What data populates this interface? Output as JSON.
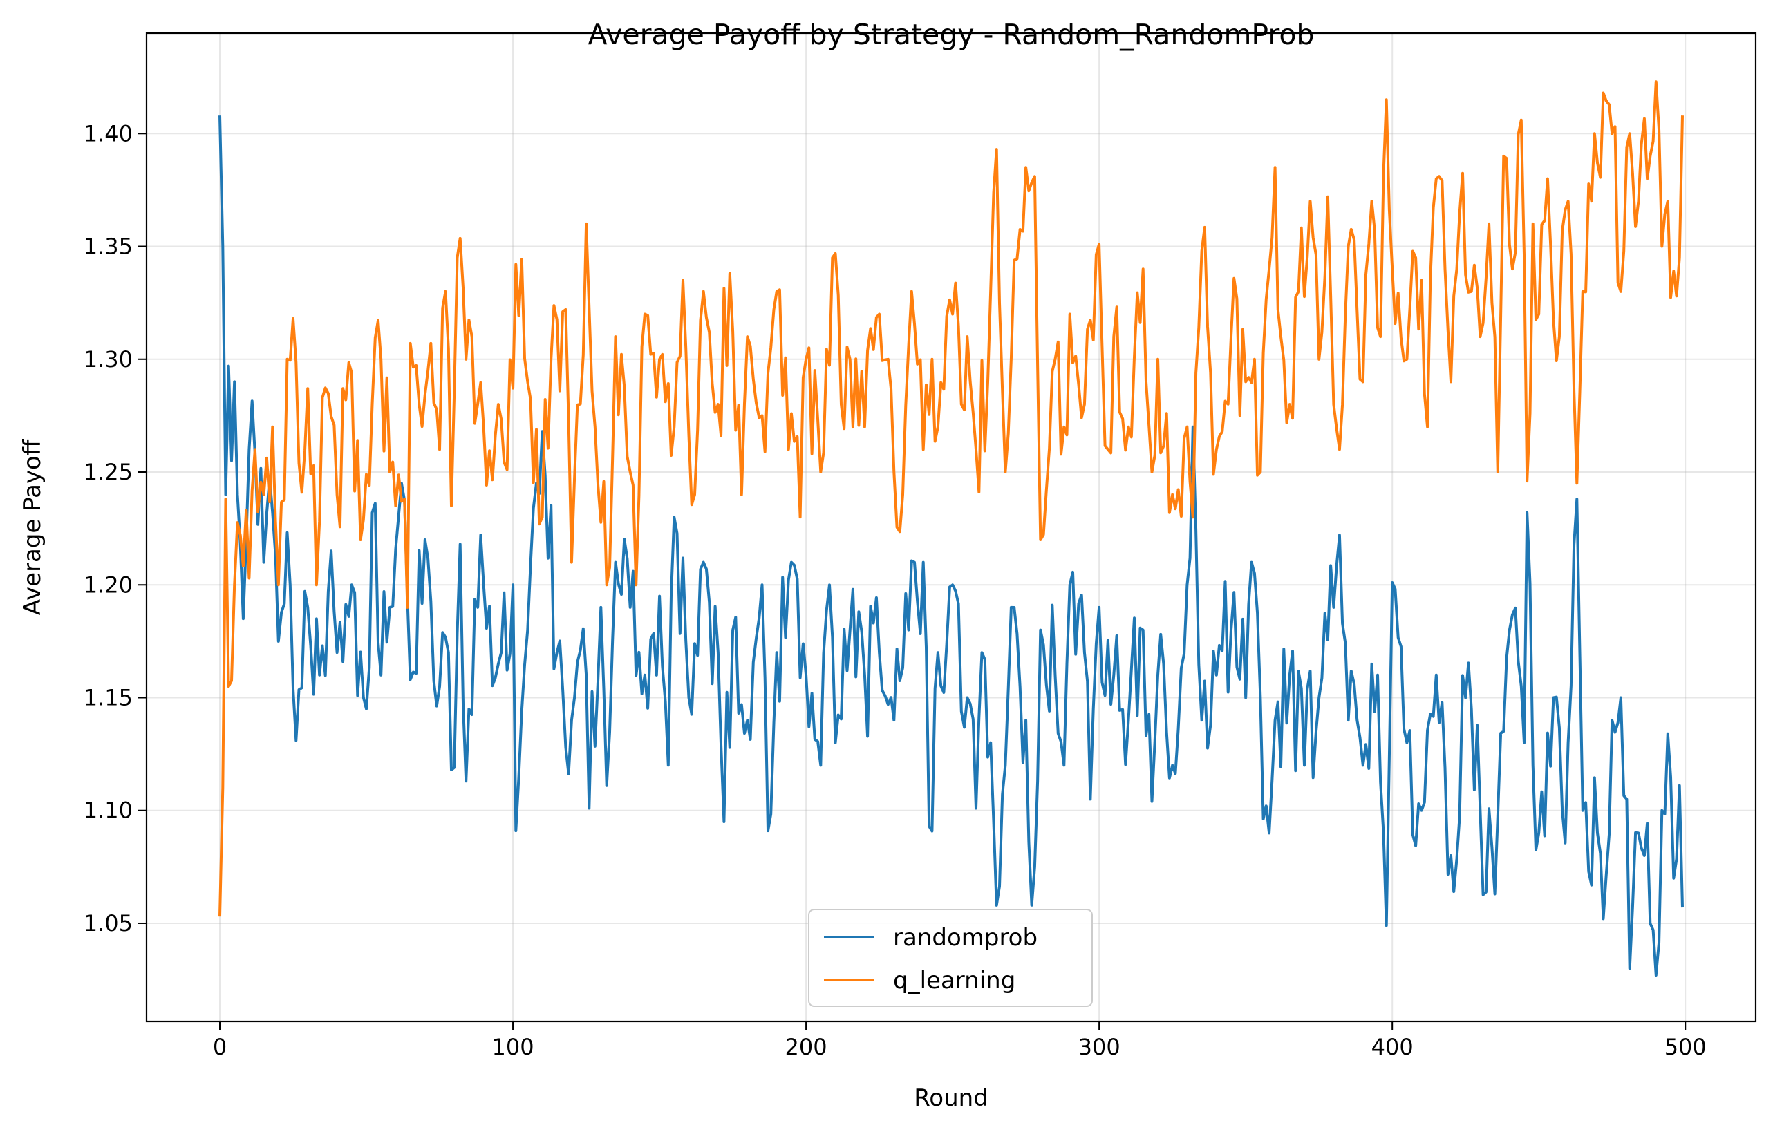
{
  "chart_data": {
    "type": "line",
    "title": "Average Payoff by Strategy - Random_RandomProb",
    "xlabel": "Round",
    "ylabel": "Average Payoff",
    "xlim": [
      -25,
      524
    ],
    "ylim": [
      1.0065,
      1.4445
    ],
    "xticks": [
      0,
      100,
      200,
      300,
      400,
      500
    ],
    "yticks": [
      1.05,
      1.1,
      1.15,
      1.2,
      1.25,
      1.3,
      1.35,
      1.4
    ],
    "grid": true,
    "legend_position": "lower-center",
    "x_start": 0,
    "x_end": 499,
    "series": [
      {
        "name": "randomprob",
        "color": "#1f77b4",
        "anchors": [
          [
            0,
            1.408
          ],
          [
            1,
            1.35
          ],
          [
            2,
            1.24
          ],
          [
            3,
            1.297
          ],
          [
            4,
            1.255
          ],
          [
            5,
            1.29
          ],
          [
            6,
            1.24
          ],
          [
            7,
            1.218
          ],
          [
            8,
            1.185
          ],
          [
            9,
            1.22
          ],
          [
            10,
            1.26
          ],
          [
            12,
            1.258
          ],
          [
            15,
            1.21
          ],
          [
            18,
            1.232
          ],
          [
            20,
            1.175
          ],
          [
            24,
            1.2
          ],
          [
            26,
            1.131
          ],
          [
            30,
            1.19
          ],
          [
            34,
            1.16
          ],
          [
            38,
            1.215
          ],
          [
            40,
            1.17
          ],
          [
            45,
            1.2
          ],
          [
            50,
            1.145
          ],
          [
            52,
            1.232
          ],
          [
            55,
            1.16
          ],
          [
            58,
            1.19
          ],
          [
            62,
            1.245
          ],
          [
            65,
            1.158
          ],
          [
            70,
            1.22
          ],
          [
            75,
            1.155
          ],
          [
            78,
            1.17
          ],
          [
            80,
            1.119
          ],
          [
            82,
            1.218
          ],
          [
            84,
            1.113
          ],
          [
            88,
            1.19
          ],
          [
            90,
            1.2
          ],
          [
            95,
            1.165
          ],
          [
            100,
            1.2
          ],
          [
            101,
            1.091
          ],
          [
            105,
            1.18
          ],
          [
            110,
            1.268
          ],
          [
            115,
            1.17
          ],
          [
            120,
            1.14
          ],
          [
            125,
            1.16
          ],
          [
            126,
            1.101
          ],
          [
            130,
            1.19
          ],
          [
            132,
            1.111
          ],
          [
            135,
            1.21
          ],
          [
            140,
            1.19
          ],
          [
            145,
            1.16
          ],
          [
            150,
            1.195
          ],
          [
            153,
            1.12
          ],
          [
            155,
            1.23
          ],
          [
            160,
            1.15
          ],
          [
            165,
            1.21
          ],
          [
            170,
            1.17
          ],
          [
            172,
            1.095
          ],
          [
            175,
            1.18
          ],
          [
            180,
            1.14
          ],
          [
            185,
            1.2
          ],
          [
            187,
            1.091
          ],
          [
            190,
            1.17
          ],
          [
            195,
            1.21
          ],
          [
            200,
            1.16
          ],
          [
            205,
            1.12
          ],
          [
            208,
            1.2
          ],
          [
            210,
            1.13
          ],
          [
            215,
            1.18
          ],
          [
            220,
            1.16
          ],
          [
            225,
            1.17
          ],
          [
            230,
            1.14
          ],
          [
            235,
            1.18
          ],
          [
            240,
            1.21
          ],
          [
            242,
            1.093
          ],
          [
            245,
            1.17
          ],
          [
            250,
            1.2
          ],
          [
            255,
            1.15
          ],
          [
            258,
            1.101
          ],
          [
            260,
            1.17
          ],
          [
            264,
            1.095
          ],
          [
            265,
            1.058
          ],
          [
            268,
            1.12
          ],
          [
            270,
            1.19
          ],
          [
            275,
            1.14
          ],
          [
            276,
            1.086
          ],
          [
            278,
            1.075
          ],
          [
            280,
            1.18
          ],
          [
            285,
            1.16
          ],
          [
            288,
            1.12
          ],
          [
            290,
            1.2
          ],
          [
            295,
            1.17
          ],
          [
            297,
            1.105
          ],
          [
            300,
            1.19
          ],
          [
            305,
            1.16
          ],
          [
            310,
            1.14
          ],
          [
            315,
            1.18
          ],
          [
            318,
            1.104
          ],
          [
            320,
            1.16
          ],
          [
            325,
            1.12
          ],
          [
            330,
            1.2
          ],
          [
            332,
            1.27
          ],
          [
            335,
            1.14
          ],
          [
            340,
            1.16
          ],
          [
            345,
            1.18
          ],
          [
            350,
            1.15
          ],
          [
            352,
            1.21
          ],
          [
            355,
            1.15
          ],
          [
            357,
            1.102
          ],
          [
            358,
            1.09
          ],
          [
            360,
            1.14
          ],
          [
            365,
            1.16
          ],
          [
            370,
            1.12
          ],
          [
            375,
            1.15
          ],
          [
            380,
            1.19
          ],
          [
            382,
            1.222
          ],
          [
            385,
            1.14
          ],
          [
            390,
            1.12
          ],
          [
            395,
            1.16
          ],
          [
            398,
            1.049
          ],
          [
            400,
            1.201
          ],
          [
            405,
            1.13
          ],
          [
            410,
            1.1
          ],
          [
            415,
            1.16
          ],
          [
            420,
            1.08
          ],
          [
            425,
            1.15
          ],
          [
            430,
            1.1
          ],
          [
            435,
            1.063
          ],
          [
            440,
            1.18
          ],
          [
            445,
            1.13
          ],
          [
            446,
            1.232
          ],
          [
            448,
            1.12
          ],
          [
            450,
            1.09
          ],
          [
            455,
            1.15
          ],
          [
            458,
            1.1
          ],
          [
            460,
            1.13
          ],
          [
            463,
            1.238
          ],
          [
            465,
            1.1
          ],
          [
            470,
            1.09
          ],
          [
            472,
            1.052
          ],
          [
            475,
            1.14
          ],
          [
            478,
            1.15
          ],
          [
            480,
            1.105
          ],
          [
            481,
            1.03
          ],
          [
            484,
            1.09
          ],
          [
            486,
            1.08
          ],
          [
            488,
            1.05
          ],
          [
            490,
            1.027
          ],
          [
            492,
            1.1
          ],
          [
            494,
            1.134
          ],
          [
            496,
            1.07
          ],
          [
            498,
            1.111
          ],
          [
            499,
            1.057
          ]
        ]
      },
      {
        "name": "q_learning",
        "color": "#ff7f0e",
        "anchors": [
          [
            0,
            1.053
          ],
          [
            1,
            1.11
          ],
          [
            2,
            1.238
          ],
          [
            3,
            1.155
          ],
          [
            5,
            1.2
          ],
          [
            7,
            1.222
          ],
          [
            10,
            1.203
          ],
          [
            12,
            1.26
          ],
          [
            15,
            1.24
          ],
          [
            18,
            1.27
          ],
          [
            20,
            1.2
          ],
          [
            23,
            1.3
          ],
          [
            25,
            1.318
          ],
          [
            27,
            1.254
          ],
          [
            30,
            1.287
          ],
          [
            33,
            1.2
          ],
          [
            35,
            1.283
          ],
          [
            40,
            1.24
          ],
          [
            45,
            1.294
          ],
          [
            48,
            1.22
          ],
          [
            52,
            1.28
          ],
          [
            55,
            1.3
          ],
          [
            58,
            1.25
          ],
          [
            60,
            1.235
          ],
          [
            62,
            1.237
          ],
          [
            64,
            1.19
          ],
          [
            65,
            1.307
          ],
          [
            68,
            1.28
          ],
          [
            72,
            1.307
          ],
          [
            75,
            1.26
          ],
          [
            77,
            1.33
          ],
          [
            79,
            1.235
          ],
          [
            81,
            1.345
          ],
          [
            84,
            1.3
          ],
          [
            86,
            1.31
          ],
          [
            90,
            1.27
          ],
          [
            95,
            1.28
          ],
          [
            98,
            1.251
          ],
          [
            101,
            1.342
          ],
          [
            105,
            1.29
          ],
          [
            110,
            1.23
          ],
          [
            113,
            1.3
          ],
          [
            118,
            1.322
          ],
          [
            120,
            1.21
          ],
          [
            125,
            1.36
          ],
          [
            128,
            1.27
          ],
          [
            132,
            1.2
          ],
          [
            135,
            1.31
          ],
          [
            140,
            1.25
          ],
          [
            142,
            1.2
          ],
          [
            145,
            1.32
          ],
          [
            150,
            1.3
          ],
          [
            155,
            1.27
          ],
          [
            158,
            1.335
          ],
          [
            162,
            1.24
          ],
          [
            165,
            1.33
          ],
          [
            170,
            1.28
          ],
          [
            174,
            1.338
          ],
          [
            178,
            1.24
          ],
          [
            180,
            1.31
          ],
          [
            185,
            1.275
          ],
          [
            190,
            1.33
          ],
          [
            194,
            1.26
          ],
          [
            198,
            1.23
          ],
          [
            200,
            1.3
          ],
          [
            205,
            1.25
          ],
          [
            209,
            1.345
          ],
          [
            212,
            1.28
          ],
          [
            215,
            1.3
          ],
          [
            220,
            1.27
          ],
          [
            225,
            1.32
          ],
          [
            228,
            1.3
          ],
          [
            230,
            1.25
          ],
          [
            233,
            1.24
          ],
          [
            236,
            1.33
          ],
          [
            240,
            1.26
          ],
          [
            243,
            1.3
          ],
          [
            245,
            1.27
          ],
          [
            250,
            1.32
          ],
          [
            253,
            1.28
          ],
          [
            255,
            1.31
          ],
          [
            258,
            1.26
          ],
          [
            262,
            1.29
          ],
          [
            265,
            1.393
          ],
          [
            268,
            1.25
          ],
          [
            270,
            1.3
          ],
          [
            275,
            1.385
          ],
          [
            278,
            1.381
          ],
          [
            280,
            1.22
          ],
          [
            285,
            1.3
          ],
          [
            288,
            1.27
          ],
          [
            290,
            1.32
          ],
          [
            295,
            1.28
          ],
          [
            300,
            1.351
          ],
          [
            303,
            1.26
          ],
          [
            305,
            1.31
          ],
          [
            310,
            1.27
          ],
          [
            315,
            1.34
          ],
          [
            318,
            1.25
          ],
          [
            320,
            1.3
          ],
          [
            325,
            1.24
          ],
          [
            330,
            1.27
          ],
          [
            332,
            1.23
          ],
          [
            335,
            1.348
          ],
          [
            340,
            1.26
          ],
          [
            345,
            1.31
          ],
          [
            350,
            1.29
          ],
          [
            353,
            1.3
          ],
          [
            355,
            1.25
          ],
          [
            358,
            1.34
          ],
          [
            360,
            1.385
          ],
          [
            362,
            1.31
          ],
          [
            365,
            1.28
          ],
          [
            368,
            1.33
          ],
          [
            372,
            1.37
          ],
          [
            375,
            1.3
          ],
          [
            378,
            1.372
          ],
          [
            380,
            1.28
          ],
          [
            382,
            1.26
          ],
          [
            385,
            1.35
          ],
          [
            390,
            1.29
          ],
          [
            393,
            1.37
          ],
          [
            396,
            1.31
          ],
          [
            398,
            1.415
          ],
          [
            400,
            1.34
          ],
          [
            405,
            1.3
          ],
          [
            408,
            1.345
          ],
          [
            412,
            1.27
          ],
          [
            415,
            1.38
          ],
          [
            418,
            1.34
          ],
          [
            420,
            1.29
          ],
          [
            423,
            1.365
          ],
          [
            427,
            1.33
          ],
          [
            430,
            1.31
          ],
          [
            433,
            1.36
          ],
          [
            436,
            1.25
          ],
          [
            438,
            1.39
          ],
          [
            441,
            1.34
          ],
          [
            444,
            1.406
          ],
          [
            446,
            1.246
          ],
          [
            448,
            1.36
          ],
          [
            450,
            1.32
          ],
          [
            453,
            1.38
          ],
          [
            457,
            1.31
          ],
          [
            460,
            1.37
          ],
          [
            463,
            1.245
          ],
          [
            465,
            1.33
          ],
          [
            468,
            1.37
          ],
          [
            470,
            1.387
          ],
          [
            472,
            1.418
          ],
          [
            475,
            1.4
          ],
          [
            478,
            1.33
          ],
          [
            481,
            1.4
          ],
          [
            484,
            1.37
          ],
          [
            487,
            1.38
          ],
          [
            490,
            1.423
          ],
          [
            492,
            1.35
          ],
          [
            494,
            1.37
          ],
          [
            496,
            1.339
          ],
          [
            498,
            1.345
          ],
          [
            499,
            1.408
          ]
        ]
      }
    ]
  }
}
